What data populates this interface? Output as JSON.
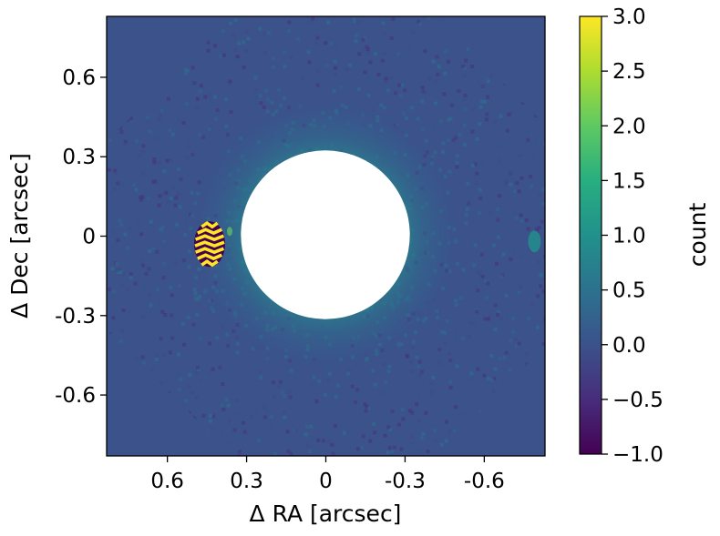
{
  "chart_data": {
    "type": "heatmap",
    "title": "",
    "xlabel": "Δ RA [arcsec]",
    "ylabel": "Δ Dec [arcsec]",
    "xlim": [
      0.83,
      -0.83
    ],
    "ylim": [
      -0.83,
      0.83
    ],
    "x_axis_reversed": true,
    "xticks": [
      0.6,
      0.3,
      0,
      -0.3,
      -0.6
    ],
    "xtick_labels": [
      "0.6",
      "0.3",
      "0",
      "-0.3",
      "-0.6"
    ],
    "yticks": [
      0.6,
      0.3,
      0,
      -0.3,
      -0.6
    ],
    "ytick_labels": [
      "0.6",
      "0.3",
      "0",
      "-0.3",
      "-0.6"
    ],
    "colorbar": {
      "label": "count",
      "vmin": -1.0,
      "vmax": 3.0,
      "colormap": "viridis",
      "ticks": [
        3.0,
        2.5,
        2.0,
        1.5,
        1.0,
        0.5,
        0.0,
        -0.5,
        -1.0
      ],
      "tick_labels": [
        "3.0",
        "2.5",
        "2.0",
        "1.5",
        "1.0",
        "0.5",
        "0.0",
        "−0.5",
        "−1.0"
      ]
    },
    "features": {
      "background_value": 0.0,
      "field_of_view": "octagon",
      "masked_disk_radius_arcsec": 0.32,
      "masked_color": "#ffffff",
      "companion": {
        "x": 0.44,
        "y": -0.03,
        "peak_value": 3.0
      },
      "secondary_feature": {
        "x": -0.79,
        "y": -0.02
      }
    },
    "colors": {
      "background": "#3b528b",
      "halo": "#2c728e",
      "noise_low": "#46337e",
      "companion_hi": "#fde725",
      "companion_lo": "#440154"
    }
  }
}
